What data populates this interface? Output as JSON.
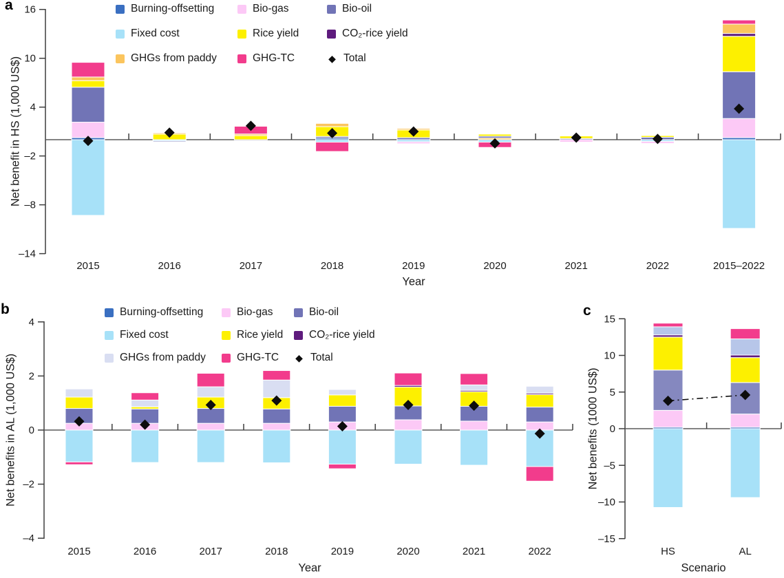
{
  "colors": {
    "burning": "#3a6fc1",
    "fixed": "#a7e1f8",
    "paddy": "#fbc55e",
    "paddy_b": "#d9def2",
    "paddy_c": "#b7c6e9",
    "biogas": "#fcc9f6",
    "rice": "#fdf000",
    "ghgtc": "#f23c8c",
    "biooil": "#7174b6",
    "biooil_c": "#8588bf",
    "co2": "#5e1b7d",
    "total": "#0d0d0d",
    "axis": "#3d3d3d",
    "zero_line": "#5a5a5a"
  },
  "legend": {
    "columns": [
      [
        {
          "key": "burning",
          "label": "Burning-offsetting"
        },
        {
          "key": "fixed",
          "label": "Fixed cost"
        },
        {
          "key": "paddy",
          "label": "GHGs from paddy"
        }
      ],
      [
        {
          "key": "biogas",
          "label": "Bio-gas"
        },
        {
          "key": "rice",
          "label": "Rice yield"
        },
        {
          "key": "ghgtc",
          "label": "GHG-TC"
        }
      ],
      [
        {
          "key": "biooil",
          "label": "Bio-oil"
        },
        {
          "key": "co2",
          "label": "CO₂-rice yield"
        },
        {
          "key": "total",
          "label": "Total"
        }
      ]
    ]
  },
  "chart_data": [
    {
      "panel": "a",
      "type": "stacked-bar",
      "ylabel": "Net benefit in HS (1,000 US$)",
      "xlabel": "Year",
      "ylim": [
        -14,
        16
      ],
      "yticks": [
        {
          "v": 16,
          "t": "16"
        },
        {
          "v": 10,
          "t": "10"
        },
        {
          "v": 4,
          "t": "4"
        },
        {
          "v": -2,
          "t": "–2"
        },
        {
          "v": -8,
          "t": "–8"
        },
        {
          "v": -14,
          "t": "–14"
        }
      ],
      "categories": [
        "2015",
        "2016",
        "2017",
        "2018",
        "2019",
        "2020",
        "2021",
        "2022",
        "2015–2022"
      ],
      "color_overrides": {},
      "bars": [
        {
          "cat": "2015",
          "pos": [
            [
              "burning",
              0.25
            ],
            [
              "biogas",
              1.9
            ],
            [
              "biooil",
              4.3
            ],
            [
              "rice",
              0.8
            ],
            [
              "paddy",
              0.45
            ],
            [
              "ghgtc",
              1.8
            ]
          ],
          "neg": [
            [
              "fixed",
              9.3
            ]
          ],
          "total": -0.15
        },
        {
          "cat": "2016",
          "pos": [
            [
              "rice",
              0.68
            ],
            [
              "paddy",
              0.15
            ]
          ],
          "neg": [
            [
              "fixed",
              0.15
            ],
            [
              "biooil",
              0.12
            ]
          ],
          "total": 0.87
        },
        {
          "cat": "2017",
          "pos": [
            [
              "rice",
              0.5
            ],
            [
              "paddy",
              0.2
            ],
            [
              "ghgtc",
              0.95
            ]
          ],
          "neg": [],
          "total": 1.7
        },
        {
          "cat": "2018",
          "pos": [
            [
              "burning",
              0.2
            ],
            [
              "biooil",
              0.2
            ],
            [
              "rice",
              1.2
            ],
            [
              "paddy",
              0.4
            ]
          ],
          "neg": [
            [
              "fixed",
              0.3
            ],
            [
              "ghgtc",
              1.15
            ]
          ],
          "total": 0.8
        },
        {
          "cat": "2019",
          "pos": [
            [
              "biooil",
              0.25
            ],
            [
              "rice",
              0.95
            ],
            [
              "paddy",
              0.18
            ]
          ],
          "neg": [
            [
              "fixed",
              0.25
            ],
            [
              "biogas",
              0.25
            ]
          ],
          "total": 1.0
        },
        {
          "cat": "2020",
          "pos": [
            [
              "paddy",
              0.2
            ],
            [
              "biooil",
              0.23
            ],
            [
              "rice",
              0.25
            ]
          ],
          "neg": [
            [
              "fixed",
              0.3
            ],
            [
              "ghgtc",
              0.65
            ]
          ],
          "total": -0.45
        },
        {
          "cat": "2021",
          "pos": [
            [
              "biooil",
              0.15
            ],
            [
              "rice",
              0.3
            ]
          ],
          "neg": [
            [
              "biogas",
              0.3
            ]
          ],
          "total": 0.25
        },
        {
          "cat": "2022",
          "pos": [
            [
              "biooil",
              0.3
            ],
            [
              "rice",
              0.2
            ]
          ],
          "neg": [
            [
              "fixed",
              0.22
            ],
            [
              "biogas",
              0.25
            ]
          ],
          "total": 0.1
        },
        {
          "cat": "2015–2022",
          "pos": [
            [
              "burning",
              0.25
            ],
            [
              "biogas",
              2.35
            ],
            [
              "biooil",
              5.75
            ],
            [
              "rice",
              4.35
            ],
            [
              "co2",
              0.35
            ],
            [
              "paddy",
              1.15
            ],
            [
              "ghgtc",
              0.5
            ]
          ],
          "neg": [
            [
              "fixed",
              10.9
            ]
          ],
          "total": 3.8
        }
      ]
    },
    {
      "panel": "b",
      "type": "stacked-bar",
      "ylabel": "Net benefits in AL (1,000 US$)",
      "xlabel": "Year",
      "ylim": [
        -4,
        4
      ],
      "yticks": [
        {
          "v": 4,
          "t": "4"
        },
        {
          "v": 2,
          "t": "2"
        },
        {
          "v": 0,
          "t": "0"
        },
        {
          "v": -2,
          "t": "–2"
        },
        {
          "v": -4,
          "t": "–4"
        }
      ],
      "categories": [
        "2015",
        "2016",
        "2017",
        "2018",
        "2019",
        "2020",
        "2021",
        "2022"
      ],
      "color_overrides": {
        "paddy": "paddy_b"
      },
      "bars": [
        {
          "cat": "2015",
          "pos": [
            [
              "biogas",
              0.25
            ],
            [
              "biooil",
              0.55
            ],
            [
              "rice",
              0.42
            ],
            [
              "paddy",
              0.3
            ]
          ],
          "neg": [
            [
              "fixed",
              1.18
            ],
            [
              "ghgtc",
              0.1
            ]
          ],
          "total": 0.32
        },
        {
          "cat": "2016",
          "pos": [
            [
              "biogas",
              0.25
            ],
            [
              "biooil",
              0.53
            ],
            [
              "rice",
              0.08
            ],
            [
              "paddy",
              0.25
            ],
            [
              "ghgtc",
              0.27
            ]
          ],
          "neg": [
            [
              "fixed",
              1.2
            ]
          ],
          "total": 0.2
        },
        {
          "cat": "2017",
          "pos": [
            [
              "biogas",
              0.25
            ],
            [
              "biooil",
              0.55
            ],
            [
              "rice",
              0.42
            ],
            [
              "paddy",
              0.38
            ],
            [
              "ghgtc",
              0.5
            ]
          ],
          "neg": [
            [
              "fixed",
              1.2
            ]
          ],
          "total": 0.93
        },
        {
          "cat": "2018",
          "pos": [
            [
              "biogas",
              0.25
            ],
            [
              "biooil",
              0.53
            ],
            [
              "rice",
              0.42
            ],
            [
              "paddy",
              0.65
            ],
            [
              "ghgtc",
              0.35
            ]
          ],
          "neg": [
            [
              "fixed",
              1.21
            ]
          ],
          "total": 1.09
        },
        {
          "cat": "2019",
          "pos": [
            [
              "biogas",
              0.3
            ],
            [
              "biooil",
              0.58
            ],
            [
              "rice",
              0.42
            ],
            [
              "paddy",
              0.2
            ]
          ],
          "neg": [
            [
              "fixed",
              1.26
            ],
            [
              "ghgtc",
              0.17
            ]
          ],
          "total": 0.14
        },
        {
          "cat": "2020",
          "pos": [
            [
              "biogas",
              0.38
            ],
            [
              "biooil",
              0.51
            ],
            [
              "rice",
              0.7
            ],
            [
              "co2",
              0.06
            ],
            [
              "ghgtc",
              0.46
            ]
          ],
          "neg": [
            [
              "fixed",
              1.26
            ]
          ],
          "total": 0.93
        },
        {
          "cat": "2021",
          "pos": [
            [
              "biogas",
              0.33
            ],
            [
              "biooil",
              0.55
            ],
            [
              "rice",
              0.54
            ],
            [
              "co2",
              0.05
            ],
            [
              "paddy",
              0.2
            ],
            [
              "ghgtc",
              0.42
            ]
          ],
          "neg": [
            [
              "fixed",
              1.3
            ]
          ],
          "total": 0.9
        },
        {
          "cat": "2022",
          "pos": [
            [
              "biogas",
              0.3
            ],
            [
              "biooil",
              0.55
            ],
            [
              "rice",
              0.46
            ],
            [
              "co2",
              0.05
            ],
            [
              "paddy",
              0.26
            ]
          ],
          "neg": [
            [
              "fixed",
              1.35
            ],
            [
              "ghgtc",
              0.54
            ]
          ],
          "total": -0.13
        }
      ]
    },
    {
      "panel": "c",
      "type": "stacked-bar",
      "ylabel": "Net benefits (1000 US$)",
      "xlabel": "Scenario",
      "ylim": [
        -15,
        15
      ],
      "yticks": [
        {
          "v": 15,
          "t": "15"
        },
        {
          "v": 10,
          "t": "10"
        },
        {
          "v": 5,
          "t": "5"
        },
        {
          "v": 0,
          "t": "0"
        },
        {
          "v": -5,
          "t": "–5"
        },
        {
          "v": -10,
          "t": "–10"
        },
        {
          "v": -15,
          "t": "–15"
        }
      ],
      "categories": [
        "HS",
        "AL"
      ],
      "color_overrides": {
        "paddy": "paddy_c",
        "biooil": "biooil_c"
      },
      "connector": true,
      "bars": [
        {
          "cat": "HS",
          "pos": [
            [
              "burning",
              0.2
            ],
            [
              "biogas",
              2.3
            ],
            [
              "biooil",
              5.5
            ],
            [
              "rice",
              4.5
            ],
            [
              "co2",
              0.3
            ],
            [
              "paddy",
              1.1
            ],
            [
              "ghgtc",
              0.5
            ]
          ],
          "neg": [
            [
              "fixed",
              10.75
            ]
          ],
          "total": 3.8
        },
        {
          "cat": "AL",
          "pos": [
            [
              "burning",
              0.2
            ],
            [
              "biogas",
              1.8
            ],
            [
              "biooil",
              4.3
            ],
            [
              "rice",
              3.4
            ],
            [
              "co2",
              0.35
            ],
            [
              "paddy",
              2.2
            ],
            [
              "ghgtc",
              1.4
            ]
          ],
          "neg": [
            [
              "fixed",
              9.4
            ]
          ],
          "total": 4.6
        }
      ]
    }
  ]
}
